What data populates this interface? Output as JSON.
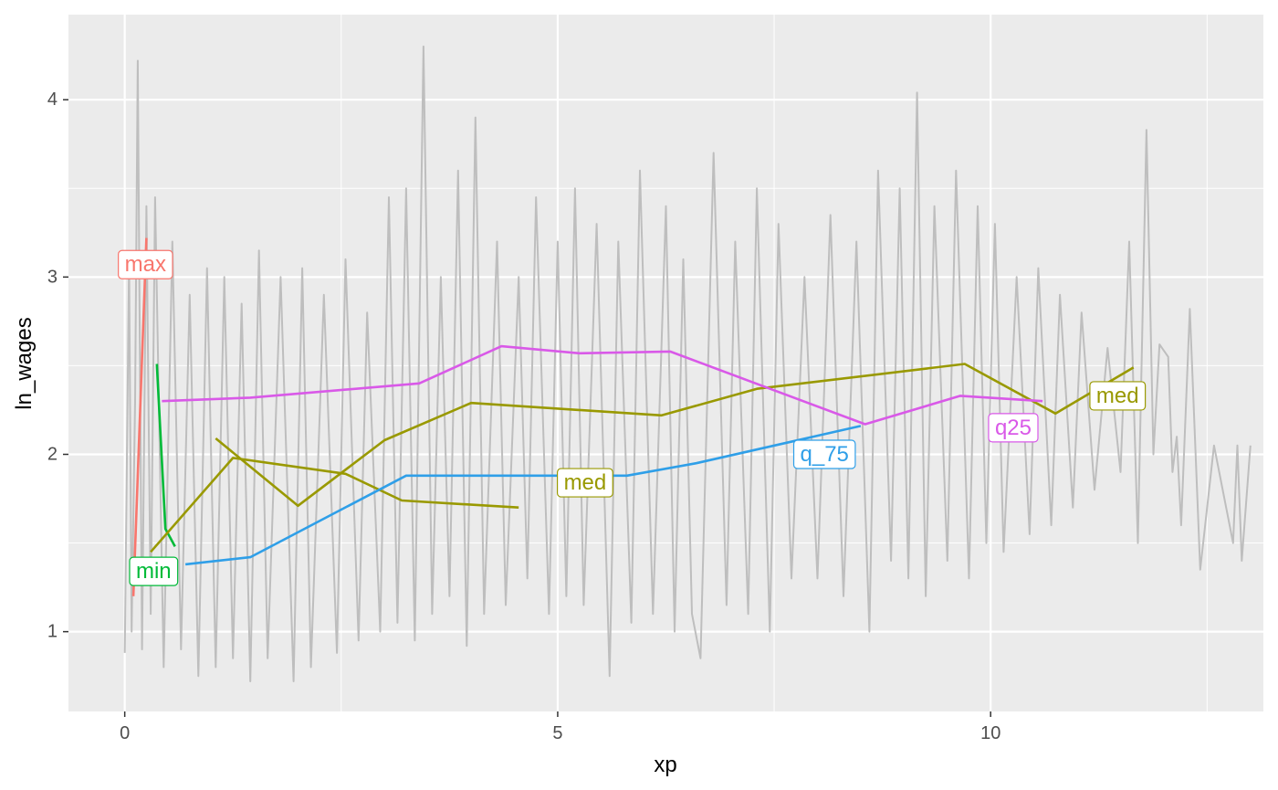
{
  "chart_data": {
    "type": "line",
    "xlabel": "xp",
    "ylabel": "ln_wages",
    "xlim": [
      -0.65,
      13.15
    ],
    "ylim": [
      0.55,
      4.48
    ],
    "x_ticks": [
      {
        "value": 0,
        "label": "0"
      },
      {
        "value": 5,
        "label": "5"
      },
      {
        "value": 10,
        "label": "10"
      }
    ],
    "y_ticks": [
      {
        "value": 1,
        "label": "1"
      },
      {
        "value": 2,
        "label": "2"
      },
      {
        "value": 3,
        "label": "3"
      },
      {
        "value": 4,
        "label": "4"
      }
    ],
    "grid": true,
    "legend": "none",
    "colors": {
      "panel": "#ebebeb",
      "grid": "#ffffff",
      "background_lines": "#bebebe",
      "max": "#f8766d",
      "min": "#00ba38",
      "med": "#999900",
      "q_75": "#2f9fe8",
      "q25": "#d959e8"
    },
    "background": {
      "name": "individual trajectories",
      "points": [
        [
          0,
          0.88
        ],
        [
          0.05,
          3.1
        ],
        [
          0.08,
          1.0
        ],
        [
          0.12,
          2.3
        ],
        [
          0.15,
          4.22
        ],
        [
          0.2,
          0.9
        ],
        [
          0.25,
          3.4
        ],
        [
          0.3,
          1.1
        ],
        [
          0.35,
          3.45
        ],
        [
          0.45,
          0.8
        ],
        [
          0.55,
          3.2
        ],
        [
          0.65,
          0.9
        ],
        [
          0.75,
          2.9
        ],
        [
          0.85,
          0.75
        ],
        [
          0.95,
          3.05
        ],
        [
          1.05,
          0.8
        ],
        [
          1.15,
          3.0
        ],
        [
          1.25,
          0.85
        ],
        [
          1.35,
          2.85
        ],
        [
          1.45,
          0.72
        ],
        [
          1.55,
          3.15
        ],
        [
          1.65,
          0.85
        ],
        [
          1.8,
          3.0
        ],
        [
          1.95,
          0.72
        ],
        [
          2.05,
          3.05
        ],
        [
          2.15,
          0.8
        ],
        [
          2.3,
          2.9
        ],
        [
          2.45,
          0.88
        ],
        [
          2.55,
          3.1
        ],
        [
          2.7,
          0.95
        ],
        [
          2.8,
          2.8
        ],
        [
          2.95,
          1.0
        ],
        [
          3.05,
          3.45
        ],
        [
          3.15,
          1.05
        ],
        [
          3.25,
          3.5
        ],
        [
          3.35,
          0.95
        ],
        [
          3.45,
          4.3
        ],
        [
          3.55,
          1.1
        ],
        [
          3.65,
          3.0
        ],
        [
          3.75,
          1.2
        ],
        [
          3.85,
          3.6
        ],
        [
          3.95,
          0.92
        ],
        [
          4.05,
          3.9
        ],
        [
          4.15,
          1.1
        ],
        [
          4.3,
          3.2
        ],
        [
          4.4,
          1.15
        ],
        [
          4.55,
          3.0
        ],
        [
          4.65,
          1.3
        ],
        [
          4.75,
          3.45
        ],
        [
          4.9,
          1.1
        ],
        [
          5.0,
          3.2
        ],
        [
          5.1,
          1.2
        ],
        [
          5.2,
          3.5
        ],
        [
          5.3,
          1.15
        ],
        [
          5.45,
          3.3
        ],
        [
          5.6,
          0.75
        ],
        [
          5.7,
          3.2
        ],
        [
          5.85,
          1.05
        ],
        [
          5.95,
          3.6
        ],
        [
          6.1,
          1.1
        ],
        [
          6.25,
          3.4
        ],
        [
          6.35,
          1.0
        ],
        [
          6.45,
          3.1
        ],
        [
          6.55,
          1.1
        ],
        [
          6.65,
          0.85
        ],
        [
          6.8,
          3.7
        ],
        [
          6.95,
          1.15
        ],
        [
          7.05,
          3.2
        ],
        [
          7.2,
          1.1
        ],
        [
          7.3,
          3.5
        ],
        [
          7.45,
          1.0
        ],
        [
          7.55,
          3.3
        ],
        [
          7.7,
          1.3
        ],
        [
          7.85,
          3.0
        ],
        [
          8.0,
          1.3
        ],
        [
          8.15,
          3.35
        ],
        [
          8.3,
          1.2
        ],
        [
          8.45,
          3.2
        ],
        [
          8.6,
          1.0
        ],
        [
          8.7,
          3.6
        ],
        [
          8.85,
          1.4
        ],
        [
          8.95,
          3.5
        ],
        [
          9.05,
          1.3
        ],
        [
          9.15,
          4.04
        ],
        [
          9.25,
          1.2
        ],
        [
          9.35,
          3.4
        ],
        [
          9.5,
          1.4
        ],
        [
          9.6,
          3.6
        ],
        [
          9.75,
          1.3
        ],
        [
          9.85,
          3.4
        ],
        [
          9.95,
          1.5
        ],
        [
          10.05,
          3.3
        ],
        [
          10.15,
          1.45
        ],
        [
          10.3,
          3.0
        ],
        [
          10.45,
          1.55
        ],
        [
          10.55,
          3.05
        ],
        [
          10.7,
          1.6
        ],
        [
          10.8,
          2.9
        ],
        [
          10.95,
          1.7
        ],
        [
          11.05,
          2.8
        ],
        [
          11.2,
          1.8
        ],
        [
          11.35,
          2.6
        ],
        [
          11.5,
          1.9
        ],
        [
          11.6,
          3.2
        ],
        [
          11.7,
          1.5
        ],
        [
          11.8,
          3.83
        ],
        [
          11.88,
          2.0
        ],
        [
          11.95,
          2.62
        ],
        [
          12.05,
          2.55
        ],
        [
          12.1,
          1.9
        ],
        [
          12.15,
          2.1
        ],
        [
          12.2,
          1.6
        ],
        [
          12.3,
          2.82
        ],
        [
          12.42,
          1.35
        ],
        [
          12.58,
          2.05
        ],
        [
          12.72,
          1.7
        ],
        [
          12.8,
          1.5
        ],
        [
          12.85,
          2.05
        ],
        [
          12.9,
          1.4
        ],
        [
          13.0,
          2.05
        ]
      ]
    },
    "series": [
      {
        "name": "max",
        "label": "max",
        "label_at": [
          0.0,
          3.07
        ],
        "points": [
          [
            0.1,
            1.2
          ],
          [
            0.25,
            3.22
          ]
        ]
      },
      {
        "name": "min",
        "label": "min",
        "label_at": [
          0.13,
          1.34
        ],
        "points": [
          [
            0.37,
            2.51
          ],
          [
            0.47,
            1.58
          ],
          [
            0.58,
            1.48
          ]
        ]
      },
      {
        "name": "med",
        "points": [
          [
            0.3,
            1.45
          ],
          [
            1.25,
            1.98
          ],
          [
            2.55,
            1.89
          ],
          [
            3.2,
            1.74
          ],
          [
            4.55,
            1.7
          ]
        ]
      },
      {
        "name": "med",
        "label": "med",
        "label_at": [
          5.07,
          1.84
        ],
        "points": [
          [
            1.05,
            2.09
          ],
          [
            2.0,
            1.71
          ],
          [
            3.0,
            2.08
          ],
          [
            4.0,
            2.29
          ],
          [
            6.2,
            2.22
          ],
          [
            7.3,
            2.37
          ],
          [
            9.7,
            2.51
          ],
          [
            10.75,
            2.23
          ],
          [
            11.65,
            2.49
          ]
        ]
      },
      {
        "name": "med",
        "label": "med",
        "label_at": [
          11.22,
          2.33
        ],
        "points": []
      },
      {
        "name": "q_75",
        "label": "q_75",
        "label_at": [
          7.8,
          2.0
        ],
        "points": [
          [
            0.7,
            1.38
          ],
          [
            1.45,
            1.42
          ],
          [
            3.25,
            1.88
          ],
          [
            5.8,
            1.88
          ],
          [
            6.6,
            1.95
          ],
          [
            8.5,
            2.16
          ]
        ]
      },
      {
        "name": "q25",
        "label": "q25",
        "label_at": [
          10.05,
          2.15
        ],
        "points": [
          [
            0.43,
            2.3
          ],
          [
            1.45,
            2.32
          ],
          [
            3.4,
            2.4
          ],
          [
            4.35,
            2.61
          ],
          [
            5.25,
            2.57
          ],
          [
            6.3,
            2.58
          ],
          [
            8.55,
            2.17
          ],
          [
            9.65,
            2.33
          ],
          [
            10.6,
            2.3
          ]
        ]
      }
    ]
  }
}
